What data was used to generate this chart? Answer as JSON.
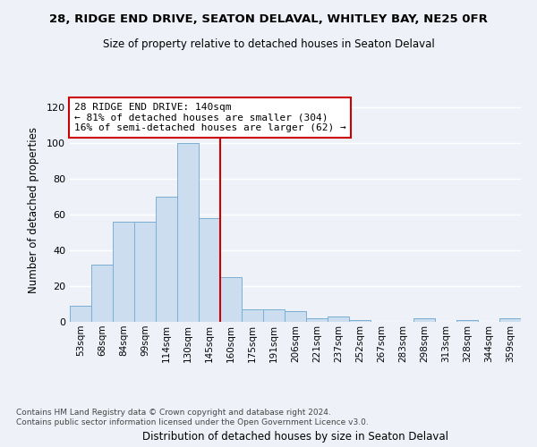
{
  "title": "28, RIDGE END DRIVE, SEATON DELAVAL, WHITLEY BAY, NE25 0FR",
  "subtitle": "Size of property relative to detached houses in Seaton Delaval",
  "xlabel": "Distribution of detached houses by size in Seaton Delaval",
  "ylabel": "Number of detached properties",
  "bin_labels": [
    "53sqm",
    "68sqm",
    "84sqm",
    "99sqm",
    "114sqm",
    "130sqm",
    "145sqm",
    "160sqm",
    "175sqm",
    "191sqm",
    "206sqm",
    "221sqm",
    "237sqm",
    "252sqm",
    "267sqm",
    "283sqm",
    "298sqm",
    "313sqm",
    "328sqm",
    "344sqm",
    "359sqm"
  ],
  "bar_heights": [
    9,
    32,
    56,
    56,
    70,
    100,
    58,
    25,
    7,
    7,
    6,
    2,
    3,
    1,
    0,
    0,
    2,
    0,
    1,
    0,
    2
  ],
  "bar_color": "#ccddef",
  "bar_edge_color": "#7ab0d4",
  "vline_x": 6.5,
  "vline_color": "#cc0000",
  "annotation_text": "28 RIDGE END DRIVE: 140sqm\n← 81% of detached houses are smaller (304)\n16% of semi-detached houses are larger (62) →",
  "annotation_box_color": "white",
  "annotation_box_edge_color": "#cc0000",
  "ylim": [
    0,
    125
  ],
  "yticks": [
    0,
    20,
    40,
    60,
    80,
    100,
    120
  ],
  "footnote": "Contains HM Land Registry data © Crown copyright and database right 2024.\nContains public sector information licensed under the Open Government Licence v3.0.",
  "bg_color": "#eef2f8",
  "grid_color": "white"
}
